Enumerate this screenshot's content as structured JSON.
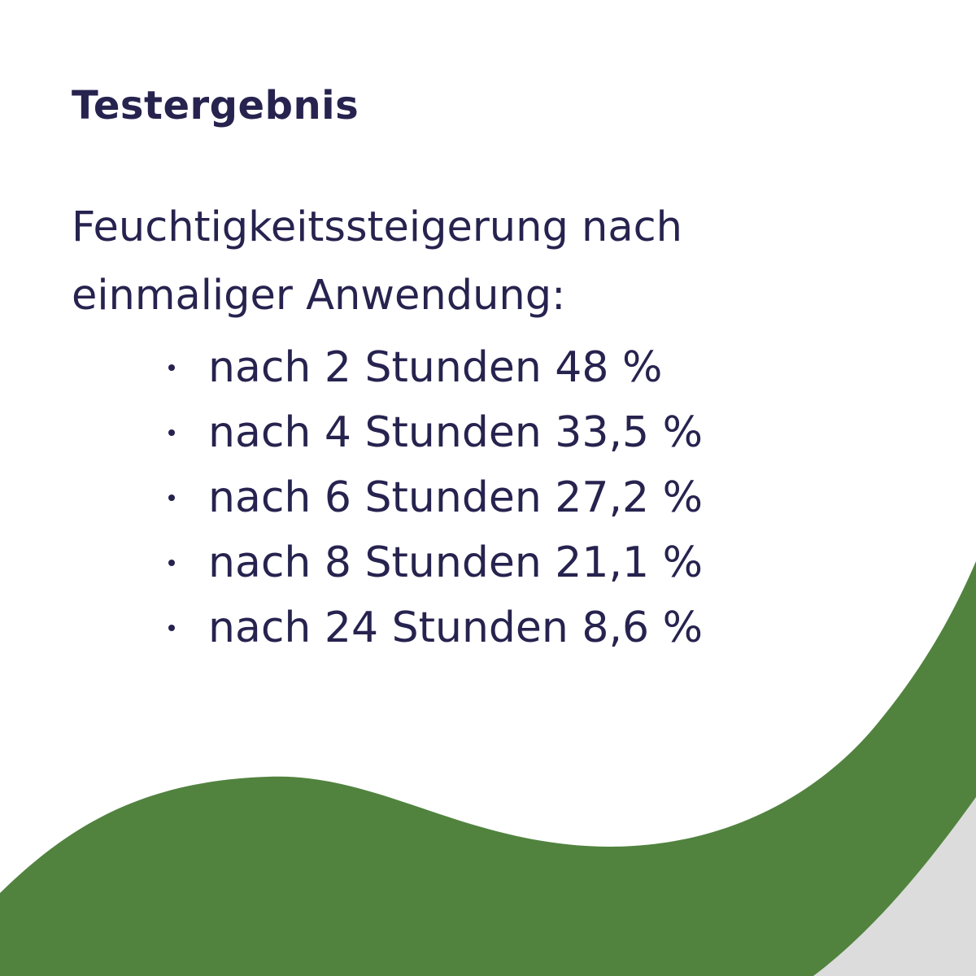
{
  "header": {
    "title": "Testergebnis"
  },
  "intro": {
    "line1": "Feuchtigkeitssteigerung nach",
    "line2": "einmaliger Anwendung:"
  },
  "results": {
    "items": [
      {
        "label": "nach 2 Stunden 48 %"
      },
      {
        "label": "nach 4 Stunden 33,5 %"
      },
      {
        "label": "nach 6 Stunden 27,2 %"
      },
      {
        "label": "nach 8 Stunden 21,1 %"
      },
      {
        "label": "nach 24 Stunden 8,6 %"
      }
    ]
  },
  "colors": {
    "text": "#27234f",
    "background": "#ffffff",
    "wave_green": "#51833f",
    "wave_grey": "#dcdcdc"
  }
}
